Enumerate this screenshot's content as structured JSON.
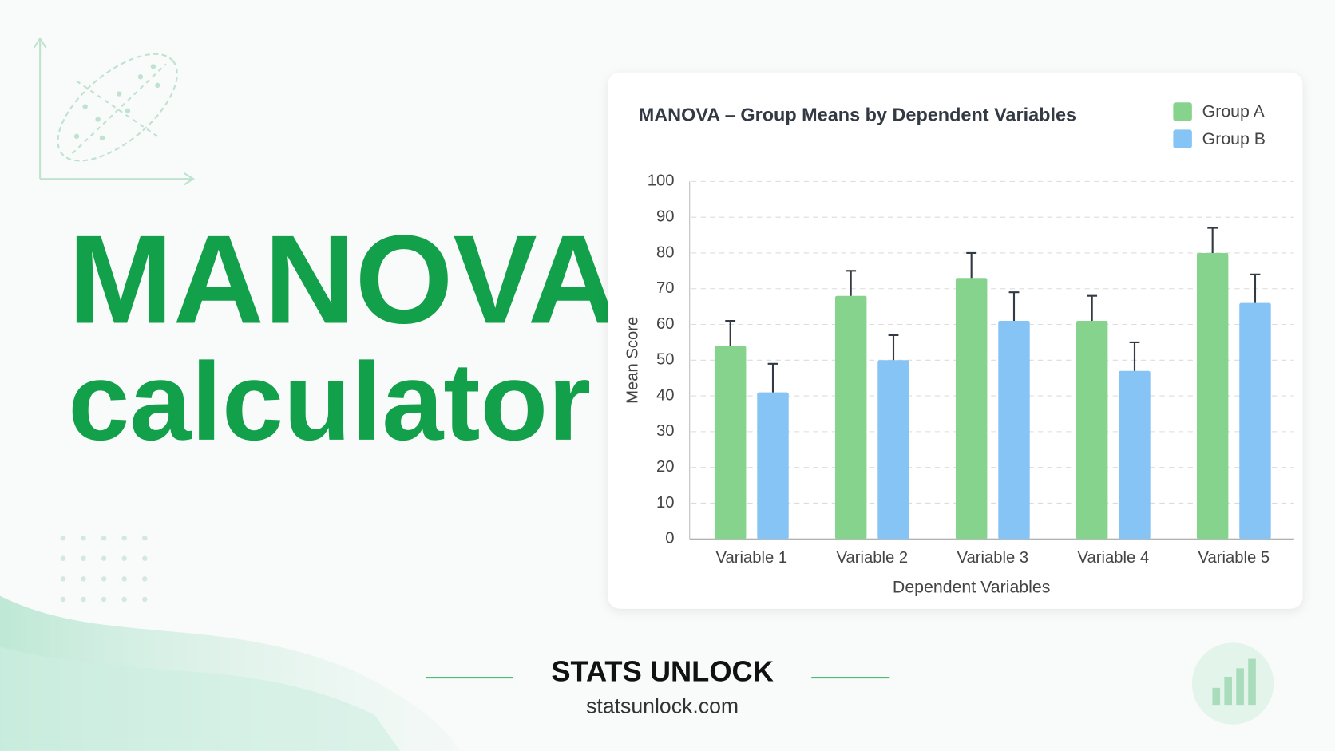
{
  "page": {
    "headline": "MANOVA",
    "subheadline": "calculator",
    "brand": "STATS UNLOCK",
    "website": "statsunlock.com"
  },
  "chart_data": {
    "type": "bar",
    "title": "MANOVA – Group Means by Dependent Variables",
    "x_label": "Dependent Variables",
    "y_label": "Mean Score",
    "categories": [
      "Variable 1",
      "Variable 2",
      "Variable 3",
      "Variable 4",
      "Variable 5"
    ],
    "series": [
      {
        "name": "Group A",
        "color": "#86d38d",
        "values": [
          54,
          68,
          73,
          61,
          80
        ],
        "errors": [
          7,
          7,
          7,
          7,
          7
        ]
      },
      {
        "name": "Group B",
        "color": "#85c4f5",
        "values": [
          41,
          50,
          61,
          47,
          66
        ],
        "errors": [
          8,
          7,
          8,
          8,
          8
        ]
      }
    ],
    "ylim": [
      0,
      100
    ],
    "yticks": [
      0,
      10,
      20,
      30,
      40,
      50,
      60,
      70,
      80,
      90,
      100
    ],
    "grid": true,
    "legend": "upper right"
  }
}
